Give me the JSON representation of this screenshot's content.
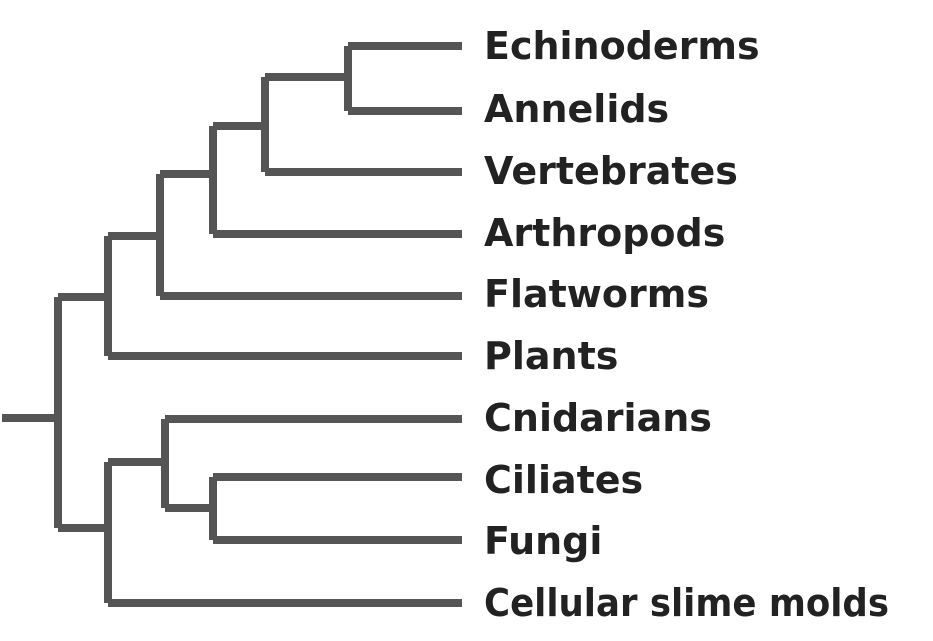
{
  "diagram": {
    "type": "phylogenetic-tree",
    "line_color": "#555555",
    "text_color": "#222222",
    "taxa": [
      "Echinoderms",
      "Annelids",
      "Vertebrates",
      "Arthropods",
      "Flatworms",
      "Plants",
      "Cnidarians",
      "Ciliates",
      "Fungi",
      "Cellular slime molds"
    ],
    "topology": [
      [
        [
          [
            [
              [
                [
                  "Echinoderms",
                  "Annelids"
                ],
                "Vertebrates"
              ],
              "Arthropods"
            ],
            "Flatworms"
          ],
          "Plants"
        ]
      ],
      [
        [
          "Cnidarians",
          [
            "Ciliates",
            "Fungi"
          ]
        ],
        "Cellular slime molds"
      ]
    ]
  }
}
